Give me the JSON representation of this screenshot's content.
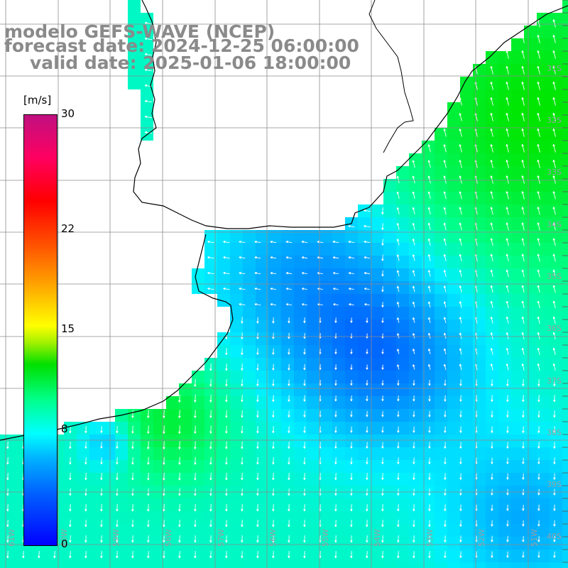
{
  "title": {
    "model": "modelo GEFS-WAVE (NCEP)",
    "forecast": "forecast date: 2024-12-25 06:00:00",
    "valid": "valid date: 2025-01-06 18:00:00"
  },
  "colorbar": {
    "unit": "[m/s]",
    "ticks": [
      "30",
      "22",
      "15",
      "8",
      "0"
    ],
    "tick_values": [
      30,
      22,
      15,
      8,
      0
    ]
  },
  "lon_labels": [
    "61W",
    "60W",
    "59W",
    "58W",
    "57W",
    "56W",
    "55W",
    "54W",
    "53W",
    "52W",
    "51W"
  ],
  "lat_labels": [
    "31S",
    "32S",
    "33S",
    "34S",
    "35S",
    "36S",
    "37S",
    "38S",
    "39S",
    "40S",
    "41S"
  ],
  "colors": {
    "grid": "#8c8c8c",
    "coast": "#000000",
    "vector": "#ffffff",
    "land": "#ffffff",
    "title_text": "#8a8a8a"
  },
  "field": {
    "variable": "wind speed",
    "range": [
      0,
      30
    ]
  }
}
